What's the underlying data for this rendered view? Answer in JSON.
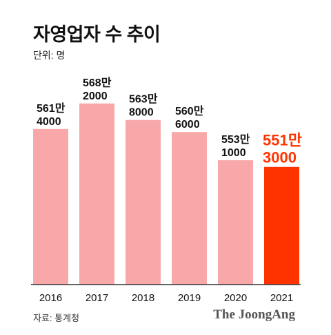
{
  "header": {
    "title": "자영업자 수 추이",
    "unit": "단위: 명"
  },
  "chart_data": {
    "type": "bar",
    "categories": [
      "2016",
      "2017",
      "2018",
      "2019",
      "2020",
      "2021"
    ],
    "values": [
      5614000,
      5682000,
      5638000,
      5606000,
      5531000,
      5513000
    ],
    "value_labels": [
      [
        "561만",
        "4000"
      ],
      [
        "568만",
        "2000"
      ],
      [
        "563만",
        "8000"
      ],
      [
        "560만",
        "6000"
      ],
      [
        "553만",
        "1000"
      ],
      [
        "551만",
        "3000"
      ]
    ],
    "highlight_index": 5,
    "colors": {
      "bar": "#f9a8aa",
      "highlight": "#ff3300",
      "label": "#111111",
      "highlight_label": "#ff3300",
      "axis": "#333333"
    },
    "ylim": [
      5200000,
      5700000
    ],
    "grid": false,
    "legend": "none"
  },
  "footer": {
    "source": "자료: 통계청",
    "logo": "The JoongAng"
  }
}
